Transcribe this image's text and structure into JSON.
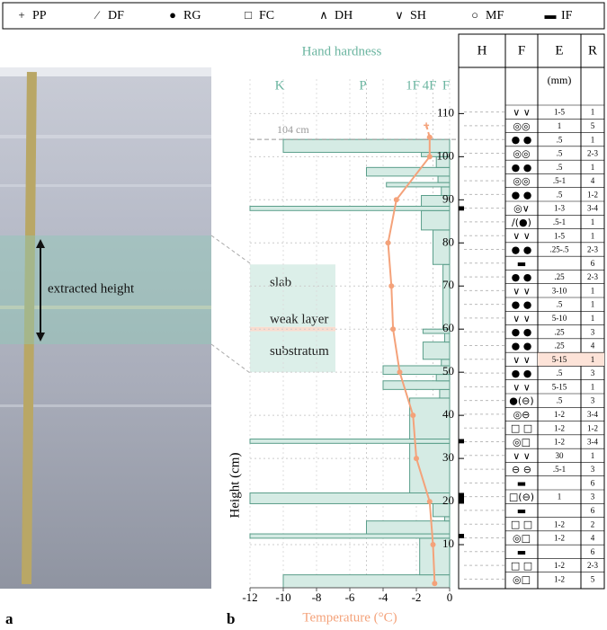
{
  "legend": [
    {
      "symbol": "+",
      "label": "PP"
    },
    {
      "symbol": "∕",
      "label": "DF"
    },
    {
      "symbol": "●",
      "label": "RG"
    },
    {
      "symbol": "□",
      "label": "FC"
    },
    {
      "symbol": "∧",
      "label": "DH"
    },
    {
      "symbol": "∨",
      "label": "SH"
    },
    {
      "symbol": "○",
      "label": "MF"
    },
    {
      "symbol": "▬",
      "label": "IF"
    }
  ],
  "panel_a": {
    "label": "a",
    "annotation": "extracted height"
  },
  "chart_data": {
    "type": "snow-profile",
    "label": "b",
    "hardness_title": "Hand hardness",
    "x_title": "Temperature (°C)",
    "y_title": "Height (cm)",
    "xlim": [
      -12,
      0
    ],
    "xticks": [
      -12,
      -10,
      -8,
      -6,
      -4,
      -2,
      0
    ],
    "hardness_ticks": [
      {
        "value": -10,
        "label": "K"
      },
      {
        "value": -5,
        "label": "P"
      },
      {
        "value": -2,
        "label": "1F"
      },
      {
        "value": -1,
        "label": "4F"
      },
      {
        "value": 0,
        "label": "F"
      }
    ],
    "ylim": [
      0,
      118
    ],
    "yticks": [
      10,
      20,
      30,
      40,
      50,
      60,
      70,
      80,
      90,
      100,
      110
    ],
    "grid": true,
    "snow_height": {
      "value": 104,
      "label": "104 cm"
    },
    "zones": [
      {
        "name": "slab",
        "bottom": 60.5,
        "top": 75,
        "color": "#dcefe9"
      },
      {
        "name": "weak layer",
        "bottom": 59.5,
        "top": 60.5,
        "color": "#f9dccf"
      },
      {
        "name": "substratum",
        "bottom": 50,
        "top": 59.5,
        "color": "#dcefe9"
      }
    ],
    "hardness_color": "#d5ebe4",
    "hardness_stroke": "#5a9e8a",
    "layers": [
      {
        "bottom": 0,
        "top": 3,
        "hardness": -10
      },
      {
        "bottom": 3,
        "top": 11.5,
        "hardness": -1.8
      },
      {
        "bottom": 11.5,
        "top": 12.5,
        "hardness": -12
      },
      {
        "bottom": 12.5,
        "top": 15.5,
        "hardness": -5
      },
      {
        "bottom": 15.5,
        "top": 16.5,
        "hardness": -0.3
      },
      {
        "bottom": 16.5,
        "top": 19.5,
        "hardness": -1
      },
      {
        "bottom": 19.5,
        "top": 22,
        "hardness": -12
      },
      {
        "bottom": 22,
        "top": 33.5,
        "hardness": -2.4
      },
      {
        "bottom": 33.5,
        "top": 34.5,
        "hardness": -12
      },
      {
        "bottom": 34.5,
        "top": 44,
        "hardness": -2.4
      },
      {
        "bottom": 44,
        "top": 46,
        "hardness": -0.6
      },
      {
        "bottom": 46,
        "top": 48,
        "hardness": -4
      },
      {
        "bottom": 48,
        "top": 49.5,
        "hardness": -0.8
      },
      {
        "bottom": 49.5,
        "top": 51.5,
        "hardness": -4
      },
      {
        "bottom": 51.5,
        "top": 53,
        "hardness": -0.5
      },
      {
        "bottom": 53,
        "top": 57,
        "hardness": -1.6
      },
      {
        "bottom": 57,
        "top": 59,
        "hardness": -0.3
      },
      {
        "bottom": 59,
        "top": 60,
        "hardness": -1.6
      },
      {
        "bottom": 60,
        "top": 75,
        "hardness": -0.4
      },
      {
        "bottom": 75,
        "top": 83,
        "hardness": -1
      },
      {
        "bottom": 83,
        "top": 87.5,
        "hardness": -1.7
      },
      {
        "bottom": 87.5,
        "top": 88.5,
        "hardness": -12
      },
      {
        "bottom": 88.5,
        "top": 91,
        "hardness": -1.7
      },
      {
        "bottom": 91,
        "top": 93,
        "hardness": -0.5
      },
      {
        "bottom": 93,
        "top": 94,
        "hardness": -3.8
      },
      {
        "bottom": 94,
        "top": 95.5,
        "hardness": -0.7
      },
      {
        "bottom": 95.5,
        "top": 97.5,
        "hardness": -5
      },
      {
        "bottom": 97.5,
        "top": 100,
        "hardness": -0.8
      },
      {
        "bottom": 100,
        "top": 101,
        "hardness": -1.7
      },
      {
        "bottom": 101,
        "top": 104,
        "hardness": -10
      }
    ],
    "temperature": {
      "color": "#f4a27a",
      "heights": [
        104.5,
        100,
        90,
        80,
        70,
        60,
        50,
        40,
        30,
        20,
        10,
        1
      ],
      "values": [
        -1.2,
        -1.2,
        -3.2,
        -3.7,
        -3.5,
        -3.4,
        -3.0,
        -2.2,
        -2.0,
        -1.2,
        -1.0,
        -0.9
      ]
    },
    "air_temperature": {
      "heights": [
        107.3,
        104.5
      ],
      "values": [
        -1.4,
        -1.2
      ]
    }
  },
  "table": {
    "headers": [
      "H",
      "F",
      "E",
      "R"
    ],
    "units": "(mm)",
    "highlight_row": 18,
    "highlight_color": "#fde3d8",
    "rows": [
      {
        "F": "∨ ∨",
        "E": "1-5",
        "R": "1"
      },
      {
        "F": "◎◎",
        "E": "1",
        "R": "5"
      },
      {
        "F": "● ●",
        "E": ".5",
        "R": "1"
      },
      {
        "F": "◎◎",
        "E": ".5",
        "R": "2-3"
      },
      {
        "F": "● ●",
        "E": ".5",
        "R": "1"
      },
      {
        "F": "◎◎",
        "E": ".5-1",
        "R": "4"
      },
      {
        "F": "● ●",
        "E": ".5",
        "R": "1-2"
      },
      {
        "F": "◎∨",
        "E": "1-3",
        "R": "3-4"
      },
      {
        "F": "∕(●)",
        "E": ".5-1",
        "R": "1"
      },
      {
        "F": "∨ ∨",
        "E": "1-5",
        "R": "1"
      },
      {
        "F": "● ●",
        "E": ".25-.5",
        "R": "2-3"
      },
      {
        "F": "▬",
        "R": "6"
      },
      {
        "F": "● ●",
        "E": ".25",
        "R": "2-3"
      },
      {
        "F": "∨ ∨",
        "E": "3-10",
        "R": "1"
      },
      {
        "F": "● ●",
        "E": ".5",
        "R": "1"
      },
      {
        "F": "∨ ∨",
        "E": "5-10",
        "R": "1"
      },
      {
        "F": "● ●",
        "E": ".25",
        "R": "3"
      },
      {
        "F": "● ●",
        "E": ".25",
        "R": "4"
      },
      {
        "F": "∨ ∨",
        "E": "5-15",
        "R": "1"
      },
      {
        "F": "● ●",
        "E": ".5",
        "R": "3"
      },
      {
        "F": "∨ ∨",
        "E": "5-15",
        "R": "1"
      },
      {
        "F": "●(⊖)",
        "E": ".5",
        "R": "3"
      },
      {
        "F": "◎⊖",
        "E": "1-2",
        "R": "3-4"
      },
      {
        "F": "□ □",
        "E": "1-2",
        "R": "1-2"
      },
      {
        "F": "◎□",
        "E": "1-2",
        "R": "3-4"
      },
      {
        "F": "∨ ∨",
        "E": "30",
        "R": "1"
      },
      {
        "F": "⊖ ⊖",
        "E": ".5-1",
        "R": "3"
      },
      {
        "F": "▬",
        "R": "6"
      },
      {
        "F": "□(⊖)",
        "E": "1",
        "R": "3"
      },
      {
        "F": "▬",
        "R": "6"
      },
      {
        "F": "□ □",
        "E": "1-2",
        "R": "2"
      },
      {
        "F": "◎□",
        "E": "1-2",
        "R": "4"
      },
      {
        "F": "▬",
        "R": "6"
      },
      {
        "F": "□ □",
        "E": "1-2",
        "R": "2-3"
      },
      {
        "F": "◎□",
        "E": "1-2",
        "R": "5"
      }
    ]
  }
}
